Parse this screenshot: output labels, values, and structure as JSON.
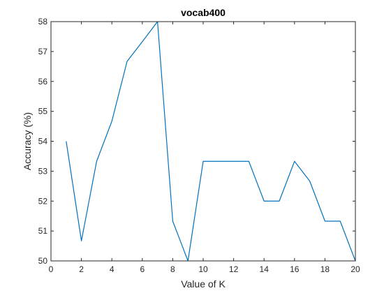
{
  "chart_data": {
    "type": "line",
    "title": "vocab400",
    "xlabel": "Value of K",
    "ylabel": "Accuracy (%)",
    "xlim": [
      0,
      20
    ],
    "ylim": [
      50,
      58
    ],
    "xticks": [
      0,
      2,
      4,
      6,
      8,
      10,
      12,
      14,
      16,
      18,
      20
    ],
    "yticks": [
      50,
      51,
      52,
      53,
      54,
      55,
      56,
      57,
      58
    ],
    "grid": false,
    "series": [
      {
        "color": "#0072BD",
        "x": [
          1,
          2,
          3,
          4,
          5,
          6,
          7,
          8,
          9,
          10,
          11,
          12,
          13,
          14,
          15,
          16,
          17,
          18,
          19,
          20
        ],
        "y": [
          54.0,
          50.67,
          53.33,
          54.67,
          56.67,
          57.33,
          58.0,
          51.33,
          50.0,
          53.33,
          53.33,
          53.33,
          53.33,
          52.0,
          52.0,
          53.33,
          52.67,
          51.33,
          51.33,
          50.0
        ]
      }
    ]
  }
}
